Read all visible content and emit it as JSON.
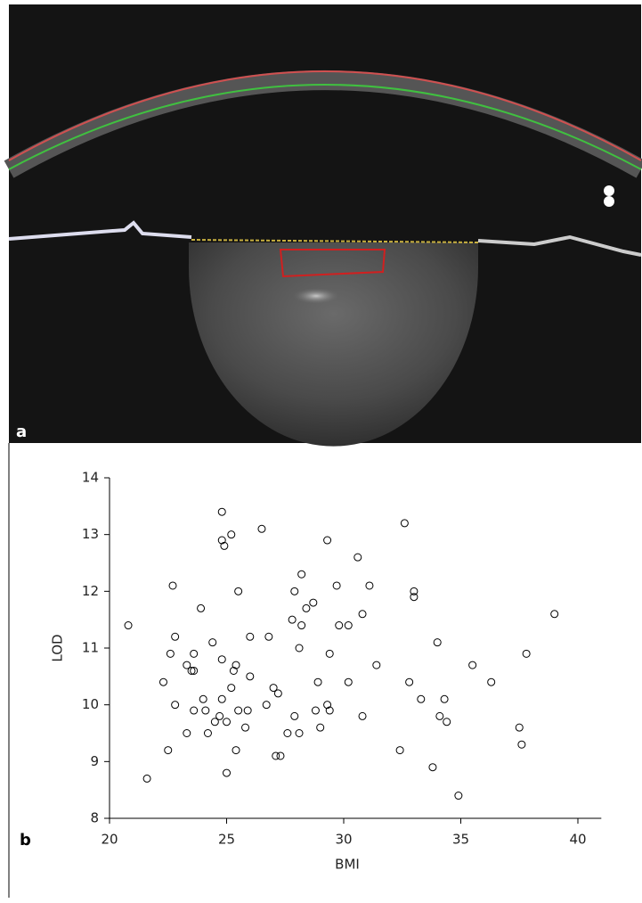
{
  "panel_labels": [
    "a",
    "b"
  ],
  "chart_data": {
    "type": "scatter",
    "x_label": "BMI",
    "y_label": "LOD",
    "color": "#000000",
    "xlim": [
      20,
      41
    ],
    "ylim": [
      8,
      14
    ],
    "xticks": [
      20,
      25,
      30,
      35,
      40
    ],
    "yticks": [
      8,
      9,
      10,
      11,
      12,
      13,
      14
    ],
    "x": [
      20.8,
      21.6,
      22.3,
      22.5,
      22.7,
      22.6,
      22.8,
      22.8,
      23.3,
      23.3,
      23.5,
      23.6,
      23.6,
      23.6,
      23.9,
      24.0,
      24.1,
      24.2,
      24.4,
      24.5,
      24.7,
      24.8,
      24.8,
      24.9,
      24.8,
      24.8,
      25.0,
      25.0,
      25.2,
      25.2,
      25.3,
      25.4,
      25.4,
      25.5,
      25.5,
      25.8,
      25.9,
      26.0,
      26.0,
      26.5,
      26.7,
      26.8,
      27.0,
      27.2,
      27.1,
      27.3,
      27.6,
      27.8,
      27.9,
      27.9,
      28.1,
      28.1,
      28.2,
      28.2,
      28.4,
      28.7,
      28.8,
      28.9,
      29.0,
      29.3,
      29.3,
      29.4,
      29.4,
      29.7,
      29.8,
      30.2,
      30.2,
      30.6,
      30.8,
      30.8,
      31.1,
      31.4,
      32.4,
      32.6,
      32.8,
      33.0,
      33.0,
      33.3,
      33.8,
      34.0,
      34.1,
      34.3,
      34.4,
      34.9,
      35.5,
      36.3,
      37.5,
      37.6,
      37.8,
      39.0
    ],
    "values": [
      11.4,
      8.7,
      10.4,
      9.2,
      12.1,
      10.9,
      11.2,
      10.0,
      9.5,
      10.7,
      10.6,
      10.6,
      10.9,
      9.9,
      11.7,
      10.1,
      9.9,
      9.5,
      11.1,
      9.7,
      9.8,
      13.4,
      12.9,
      12.8,
      10.8,
      10.1,
      9.7,
      8.8,
      13.0,
      10.3,
      10.6,
      10.7,
      9.2,
      12.0,
      9.9,
      9.6,
      9.9,
      10.5,
      11.2,
      13.1,
      10.0,
      11.2,
      10.3,
      10.2,
      9.1,
      9.1,
      9.5,
      11.5,
      12.0,
      9.8,
      11.0,
      9.5,
      12.3,
      11.4,
      11.7,
      11.8,
      9.9,
      10.4,
      9.6,
      12.9,
      10.0,
      9.9,
      10.9,
      12.1,
      11.4,
      11.4,
      10.4,
      12.6,
      11.6,
      9.8,
      12.1,
      10.7,
      9.2,
      13.2,
      10.4,
      11.9,
      12.0,
      10.1,
      8.9,
      11.1,
      9.8,
      10.1,
      9.7,
      8.4,
      10.7,
      10.4,
      9.6,
      9.3,
      10.9,
      11.6
    ]
  }
}
